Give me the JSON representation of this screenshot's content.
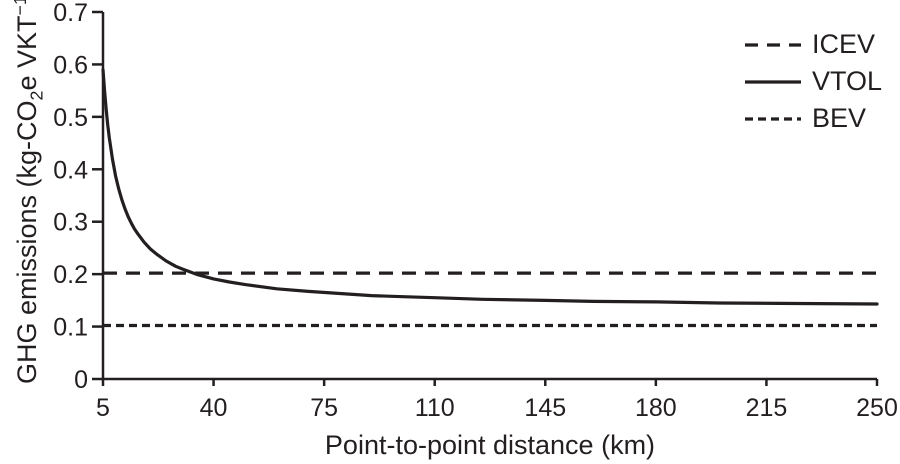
{
  "chart_data": {
    "type": "line",
    "title": "",
    "xlabel": "Point-to-point distance (km)",
    "ylabel_parts": {
      "prefix": "GHG emissions (kg-CO",
      "sub": "2",
      "mid": "e VKT",
      "sup": "−1",
      "suffix": ")"
    },
    "xlim": [
      5,
      250
    ],
    "ylim": [
      0,
      0.7
    ],
    "x_ticks": [
      5,
      40,
      75,
      110,
      145,
      180,
      215,
      250
    ],
    "y_ticks": [
      0,
      0.1,
      0.2,
      0.3,
      0.4,
      0.5,
      0.6,
      0.7
    ],
    "y_tick_labels": [
      "0",
      "0.1",
      "0.2",
      "0.3",
      "0.4",
      "0.5",
      "0.6",
      "0.7"
    ],
    "grid": false,
    "legend": {
      "position": "top-right",
      "entries": [
        "ICEV",
        "VTOL",
        "BEV"
      ]
    },
    "colors": {
      "line": "#231f20",
      "background": "#ffffff"
    },
    "series": [
      {
        "name": "ICEV",
        "type": "hline",
        "style": "dashed-long",
        "value": 0.202
      },
      {
        "name": "VTOL",
        "type": "curve",
        "style": "solid",
        "points": {
          "x": [
            5,
            5.5,
            6,
            6.5,
            7,
            8,
            9,
            10,
            11,
            12,
            13,
            14,
            15,
            16,
            18,
            20,
            22,
            25,
            28,
            30,
            35,
            40,
            45,
            50,
            60,
            70,
            80,
            90,
            100,
            110,
            125,
            145,
            160,
            180,
            200,
            225,
            250
          ],
          "y": [
            0.59,
            0.549,
            0.514,
            0.485,
            0.46,
            0.419,
            0.387,
            0.362,
            0.341,
            0.324,
            0.309,
            0.297,
            0.286,
            0.277,
            0.261,
            0.248,
            0.238,
            0.225,
            0.215,
            0.21,
            0.199,
            0.191,
            0.185,
            0.18,
            0.172,
            0.167,
            0.163,
            0.159,
            0.157,
            0.155,
            0.152,
            0.15,
            0.148,
            0.147,
            0.145,
            0.144,
            0.143
          ]
        }
      },
      {
        "name": "BEV",
        "type": "hline",
        "style": "dashed-short",
        "value": 0.102
      }
    ]
  }
}
